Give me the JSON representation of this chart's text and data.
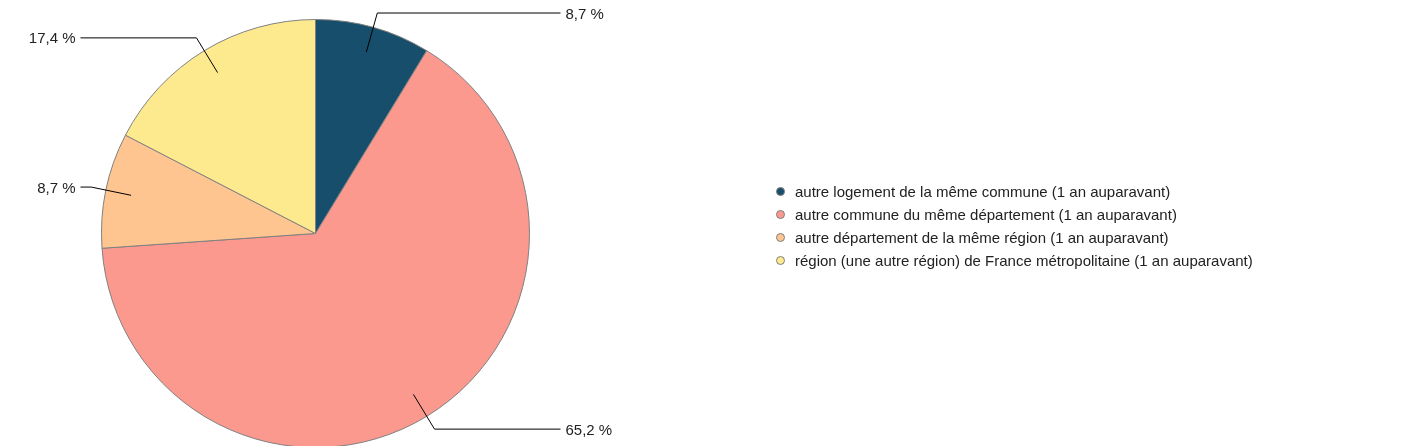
{
  "chart_data": {
    "type": "pie",
    "categories": [
      "autre logement de la même commune (1 an auparavant)",
      "autre commune du même département (1 an auparavant)",
      "autre département de la même région (1 an auparavant)",
      "région (une autre région) de France métropolitaine (1 an auparavant)"
    ],
    "values": [
      8.7,
      65.2,
      8.7,
      17.4
    ],
    "colors": [
      "#174e6c",
      "#fb998e",
      "#fec590",
      "#feea8e"
    ],
    "value_labels": [
      "8,7 %",
      "65,2 %",
      "8,7 %",
      "17,4 %"
    ],
    "legend": "right"
  }
}
